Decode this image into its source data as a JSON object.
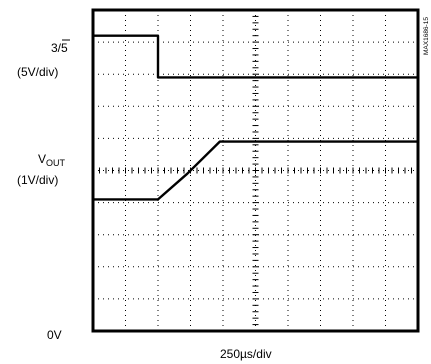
{
  "labels": {
    "ch1_name": "3/5",
    "ch1_scale": "(5V/div)",
    "ch2_name_main": "V",
    "ch2_name_sub": "OUT",
    "ch2_scale": "(1V/div)",
    "ground": "0V",
    "xlabel": "250µs/div",
    "figure_id": "MAX1686-15"
  },
  "chart_data": {
    "type": "line",
    "title": "",
    "xlabel": "250µs/div",
    "ylabel": "",
    "grid": true,
    "x_divisions": 10,
    "y_divisions": 10,
    "series": [
      {
        "name": "3/5",
        "volts_per_div": 5,
        "x_div": [
          0,
          2,
          2,
          10
        ],
        "y_div": [
          9.2,
          9.2,
          7.9,
          7.9
        ]
      },
      {
        "name": "VOUT",
        "volts_per_div": 1,
        "x_div": [
          0,
          2,
          2.9,
          3.9,
          10
        ],
        "y_div": [
          4.1,
          4.1,
          4.9,
          5.9,
          5.9
        ]
      }
    ]
  }
}
